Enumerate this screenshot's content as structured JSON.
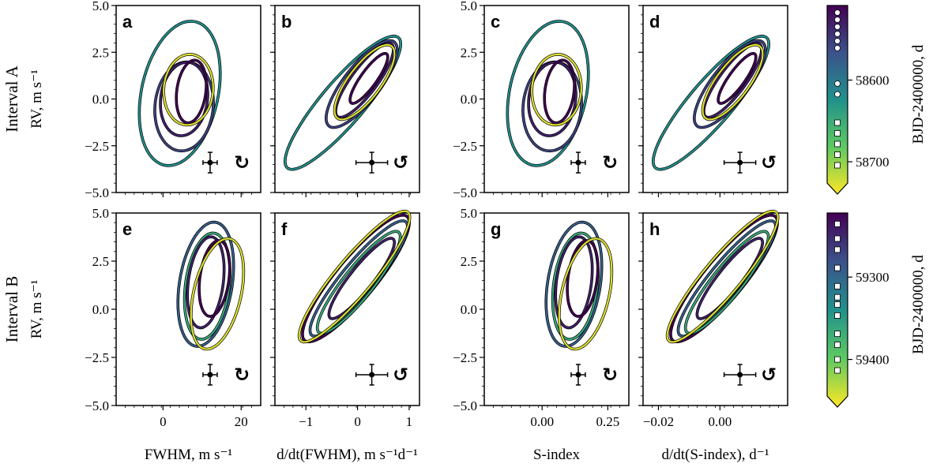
{
  "chart_data": {
    "type": "line",
    "description": "Phase-plot loops of RV against activity indicators, coloured by time",
    "rows": [
      {
        "label": "Interval A",
        "ylabel": "RV, m s⁻¹",
        "colorbar_ticks": [
          "58600",
          "58700"
        ],
        "colorbar_label": "BJD-2400000, d"
      },
      {
        "label": "Interval B",
        "ylabel": "RV, m s⁻¹",
        "colorbar_ticks": [
          "59300",
          "59400"
        ],
        "colorbar_label": "BJD-2400000, d"
      }
    ],
    "ylim": [
      -5,
      5
    ],
    "yticks": [
      "5.0",
      "2.5",
      "0.0",
      "−2.5",
      "−5.0"
    ],
    "panels": [
      {
        "letter": "a",
        "row": 0,
        "col": 0,
        "rot": "↻"
      },
      {
        "letter": "b",
        "row": 0,
        "col": 1,
        "rot": "↺"
      },
      {
        "letter": "c",
        "row": 0,
        "col": 2,
        "rot": "↻"
      },
      {
        "letter": "d",
        "row": 0,
        "col": 3,
        "rot": "↺"
      },
      {
        "letter": "e",
        "row": 1,
        "col": 0,
        "rot": "↻"
      },
      {
        "letter": "f",
        "row": 1,
        "col": 1,
        "rot": "↺"
      },
      {
        "letter": "g",
        "row": 1,
        "col": 2,
        "rot": "↻"
      },
      {
        "letter": "h",
        "row": 1,
        "col": 3,
        "rot": "↺"
      }
    ],
    "columns": [
      {
        "xlabel": "FWHM, m s⁻¹",
        "xticks": [
          {
            "v": 0,
            "t": "0"
          },
          {
            "v": 20,
            "t": "20"
          }
        ],
        "xlim": [
          -12,
          25
        ]
      },
      {
        "xlabel": "d/dt(FWHM), m s⁻¹d⁻¹",
        "xticks": [
          {
            "v": -1,
            "t": "−1"
          },
          {
            "v": 0,
            "t": "0"
          },
          {
            "v": 1,
            "t": "1"
          }
        ],
        "xlim": [
          -1.6,
          1.2
        ]
      },
      {
        "xlabel": "S-index",
        "xticks": [
          {
            "v": 0,
            "t": "0.00"
          },
          {
            "v": 0.25,
            "t": "0.25"
          }
        ],
        "xlim": [
          -0.22,
          0.33
        ]
      },
      {
        "xlabel": "d/dt(S-index), d⁻¹",
        "xticks": [
          {
            "v": -0.02,
            "t": "−0.02"
          },
          {
            "v": 0,
            "t": "0.00"
          }
        ],
        "xlim": [
          -0.025,
          0.022
        ]
      }
    ],
    "colormap": [
      "#440154",
      "#3b528b",
      "#21918c",
      "#5ec962",
      "#fde725"
    ]
  }
}
